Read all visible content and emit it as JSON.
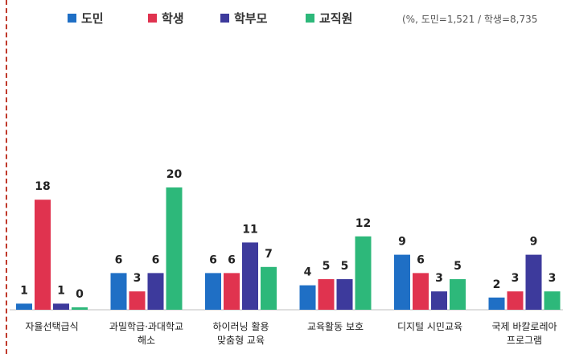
{
  "legend": {
    "items": [
      {
        "label": "도민",
        "color": "#1f6fc5"
      },
      {
        "label": "학생",
        "color": "#e0334f"
      },
      {
        "label": "학부모",
        "color": "#3d3a9c"
      },
      {
        "label": "교직원",
        "color": "#2db87a"
      }
    ]
  },
  "note": "(%, 도민=1,521 / 학생=8,735",
  "chart_data": {
    "type": "bar",
    "categories": [
      [
        "자율선택급식"
      ],
      [
        "과밀학급·과대학교",
        "해소"
      ],
      [
        "하이러닝 활용",
        "맞춤형 교육"
      ],
      [
        "교육활동 보호"
      ],
      [
        "디지털 시민교육"
      ],
      [
        "국제 바칼로레아",
        "프로그램"
      ]
    ],
    "series": [
      {
        "name": "도민",
        "color": "#1f6fc5",
        "values": [
          1,
          6,
          6,
          4,
          9,
          2
        ]
      },
      {
        "name": "학생",
        "color": "#e0334f",
        "values": [
          18,
          3,
          6,
          5,
          6,
          3
        ]
      },
      {
        "name": "학부모",
        "color": "#3d3a9c",
        "values": [
          1,
          6,
          11,
          5,
          3,
          9
        ]
      },
      {
        "name": "교직원",
        "color": "#2db87a",
        "values": [
          0,
          20,
          7,
          12,
          5,
          3
        ]
      }
    ],
    "ylim": [
      0,
      20
    ],
    "grid": false
  }
}
